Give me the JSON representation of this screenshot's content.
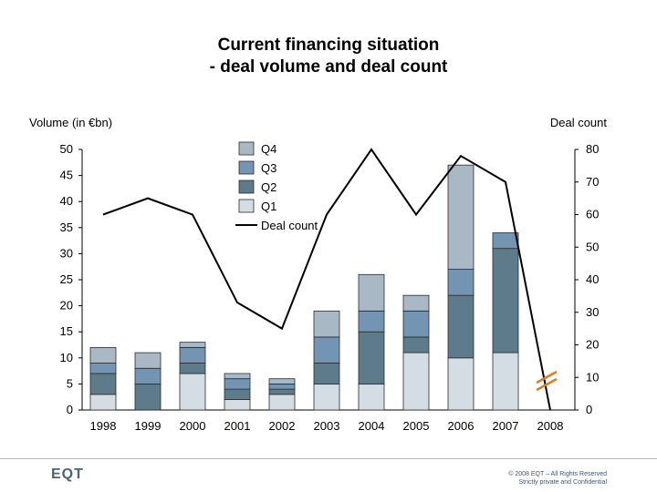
{
  "chart_data": {
    "type": "bar",
    "title": "Current financing situation",
    "subtitle": "- deal volume and deal count",
    "ylabel": "Volume (in €bn)",
    "y2label": "Deal count",
    "ylim": [
      0,
      50
    ],
    "y2lim": [
      0,
      80
    ],
    "yticks": [
      0,
      5,
      10,
      15,
      20,
      25,
      30,
      35,
      40,
      45,
      50
    ],
    "y2ticks": [
      0,
      10,
      20,
      30,
      40,
      50,
      60,
      70,
      80
    ],
    "categories": [
      "1998",
      "1999",
      "2000",
      "2001",
      "2002",
      "2003",
      "2004",
      "2005",
      "2006",
      "2007",
      "2008"
    ],
    "series": [
      {
        "name": "Q1",
        "color": "#d5dde4",
        "values": [
          3,
          0,
          7,
          2,
          3,
          5,
          5,
          11,
          10,
          11,
          0
        ]
      },
      {
        "name": "Q2",
        "color": "#5d7b8b",
        "values": [
          4,
          5,
          2,
          2,
          1,
          4,
          10,
          3,
          12,
          20,
          0
        ]
      },
      {
        "name": "Q3",
        "color": "#7494b4",
        "values": [
          2,
          3,
          3,
          2,
          1,
          5,
          4,
          5,
          5,
          3,
          0
        ]
      },
      {
        "name": "Q4",
        "color": "#a8b8c4",
        "values": [
          3,
          3,
          1,
          1,
          1,
          5,
          7,
          3,
          20,
          0,
          0
        ]
      }
    ],
    "line": {
      "name": "Deal count",
      "color": "#000000",
      "values": [
        60,
        65,
        60,
        33,
        25,
        60,
        80,
        60,
        78,
        70,
        0
      ]
    },
    "legend_order": [
      "Q4",
      "Q3",
      "Q2",
      "Q1",
      "Deal count"
    ],
    "legend": "top-center",
    "grid": false
  },
  "footer": {
    "logo": "EQT",
    "copyright_line1": "© 2008 EQT – All Rights Reserved",
    "copyright_line2": "Strictly private and Confidential"
  }
}
